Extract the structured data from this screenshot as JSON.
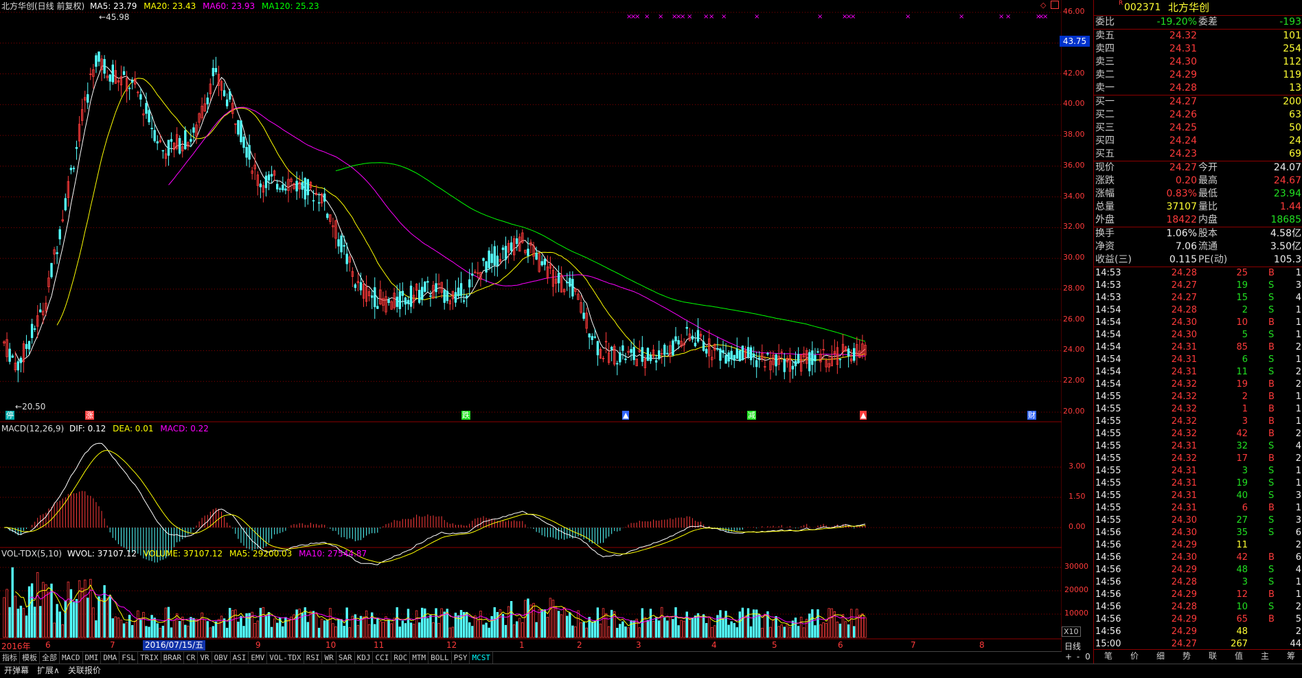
{
  "main_header": {
    "title": "北方华创(日线 前复权)",
    "ma5": "MA5: 23.79",
    "ma20": "MA20: 23.43",
    "ma60": "MA60: 23.93",
    "ma120": "MA120: 25.23"
  },
  "macd_header": {
    "name": "MACD(12,26,9)",
    "dif": "DIF: 0.12",
    "dea": "DEA: 0.01",
    "macd": "MACD: 0.22"
  },
  "vol_header": {
    "name": "VOL-TDX(5,10)",
    "wvol": "WVOL: 37107.12",
    "volume": "VOLUME: 37107.12",
    "ma5": "MA5: 29200.03",
    "ma10": "MA10: 27544.87"
  },
  "price_axis": [
    "46.00",
    "44.00",
    "42.00",
    "40.00",
    "38.00",
    "36.00",
    "34.00",
    "32.00",
    "30.00",
    "28.00",
    "26.00",
    "24.00",
    "22.00",
    "20.00"
  ],
  "current_marker": "43.75",
  "high_label": "45.98",
  "low_label": "20.50",
  "macd_axis": [
    "3.00",
    "1.50",
    "0.00"
  ],
  "vol_axis": [
    "30000",
    "20000",
    "10000"
  ],
  "vol_unit": "X10",
  "month_axis": {
    "items": [
      "2016年",
      "6",
      "7",
      "9",
      "10",
      "11",
      "12",
      "1",
      "2",
      "3",
      "4",
      "5",
      "6",
      "7",
      "8"
    ],
    "cursor_date": "2016/07/15/五",
    "period": "日线"
  },
  "event_markers": [
    "停",
    "涨",
    "跌",
    "▲",
    "减",
    "▲",
    "财"
  ],
  "toolbar_tabs": [
    "指标",
    "模板",
    "全部",
    "MACD",
    "DMI",
    "DMA",
    "FSL",
    "TRIX",
    "BRAR",
    "CR",
    "VR",
    "OBV",
    "ASI",
    "EMV",
    "VOL-TDX",
    "RSI",
    "WR",
    "SAR",
    "KDJ",
    "CCI",
    "ROC",
    "MTM",
    "BOLL",
    "PSY",
    "MCST"
  ],
  "toolbar_active": "MCST",
  "bottom_buttons": [
    "开弹幕",
    "扩展∧",
    "关联报价"
  ],
  "zoom_buttons": [
    "+",
    "-",
    "0"
  ],
  "quote": {
    "code": "002371",
    "name": "北方华创",
    "weibi_label": "委比",
    "weibi_value": "-19.20%",
    "weicha_label": "委差",
    "weicha_value": "-193",
    "sell": [
      {
        "label": "卖五",
        "price": "24.32",
        "vol": "101"
      },
      {
        "label": "卖四",
        "price": "24.31",
        "vol": "254"
      },
      {
        "label": "卖三",
        "price": "24.30",
        "vol": "112"
      },
      {
        "label": "卖二",
        "price": "24.29",
        "vol": "119"
      },
      {
        "label": "卖一",
        "price": "24.28",
        "vol": "13"
      }
    ],
    "buy": [
      {
        "label": "买一",
        "price": "24.27",
        "vol": "200"
      },
      {
        "label": "买二",
        "price": "24.26",
        "vol": "63"
      },
      {
        "label": "买三",
        "price": "24.25",
        "vol": "50"
      },
      {
        "label": "买四",
        "price": "24.24",
        "vol": "24"
      },
      {
        "label": "买五",
        "price": "24.23",
        "vol": "69"
      }
    ],
    "stats": [
      {
        "l1": "现价",
        "v1": "24.27",
        "c1": "red",
        "l2": "今开",
        "v2": "24.07",
        "c2": "wht"
      },
      {
        "l1": "涨跌",
        "v1": "0.20",
        "c1": "red",
        "l2": "最高",
        "v2": "24.67",
        "c2": "red"
      },
      {
        "l1": "涨幅",
        "v1": "0.83%",
        "c1": "red",
        "l2": "最低",
        "v2": "23.94",
        "c2": "grn"
      },
      {
        "l1": "总量",
        "v1": "37107",
        "c1": "yel",
        "l2": "量比",
        "v2": "1.44",
        "c2": "red"
      },
      {
        "l1": "外盘",
        "v1": "18422",
        "c1": "red",
        "l2": "内盘",
        "v2": "18685",
        "c2": "grn"
      }
    ],
    "stats2": [
      {
        "l1": "换手",
        "v1": "1.06%",
        "l2": "股本",
        "v2": "4.58亿"
      },
      {
        "l1": "净资",
        "v1": "7.06",
        "l2": "流通",
        "v2": "3.50亿"
      },
      {
        "l1": "收益(三)",
        "v1": "0.115",
        "l2": "PE(动)",
        "v2": "105.3"
      }
    ]
  },
  "ticks": [
    {
      "t": "14:53",
      "p": "24.28",
      "v": "25",
      "d": "B",
      "n": "1"
    },
    {
      "t": "14:53",
      "p": "24.27",
      "v": "19",
      "d": "S",
      "n": "3"
    },
    {
      "t": "14:53",
      "p": "24.27",
      "v": "15",
      "d": "S",
      "n": "4"
    },
    {
      "t": "14:54",
      "p": "24.28",
      "v": "2",
      "d": "S",
      "n": "1"
    },
    {
      "t": "14:54",
      "p": "24.30",
      "v": "10",
      "d": "B",
      "n": "1"
    },
    {
      "t": "14:54",
      "p": "24.30",
      "v": "5",
      "d": "S",
      "n": "1"
    },
    {
      "t": "14:54",
      "p": "24.31",
      "v": "85",
      "d": "B",
      "n": "2"
    },
    {
      "t": "14:54",
      "p": "24.31",
      "v": "6",
      "d": "S",
      "n": "1"
    },
    {
      "t": "14:54",
      "p": "24.31",
      "v": "11",
      "d": "S",
      "n": "2"
    },
    {
      "t": "14:54",
      "p": "24.32",
      "v": "19",
      "d": "B",
      "n": "2"
    },
    {
      "t": "14:55",
      "p": "24.32",
      "v": "2",
      "d": "B",
      "n": "1"
    },
    {
      "t": "14:55",
      "p": "24.32",
      "v": "1",
      "d": "B",
      "n": "1"
    },
    {
      "t": "14:55",
      "p": "24.32",
      "v": "3",
      "d": "B",
      "n": "1"
    },
    {
      "t": "14:55",
      "p": "24.32",
      "v": "42",
      "d": "B",
      "n": "2"
    },
    {
      "t": "14:55",
      "p": "24.31",
      "v": "32",
      "d": "S",
      "n": "4"
    },
    {
      "t": "14:55",
      "p": "24.32",
      "v": "17",
      "d": "B",
      "n": "2"
    },
    {
      "t": "14:55",
      "p": "24.31",
      "v": "3",
      "d": "S",
      "n": "1"
    },
    {
      "t": "14:55",
      "p": "24.31",
      "v": "19",
      "d": "S",
      "n": "1"
    },
    {
      "t": "14:55",
      "p": "24.31",
      "v": "40",
      "d": "S",
      "n": "3"
    },
    {
      "t": "14:55",
      "p": "24.31",
      "v": "6",
      "d": "B",
      "n": "1"
    },
    {
      "t": "14:55",
      "p": "24.30",
      "v": "27",
      "d": "S",
      "n": "3"
    },
    {
      "t": "14:56",
      "p": "24.30",
      "v": "35",
      "d": "S",
      "n": "6"
    },
    {
      "t": "14:56",
      "p": "24.29",
      "v": "11",
      "d": "",
      "n": "2"
    },
    {
      "t": "14:56",
      "p": "24.30",
      "v": "42",
      "d": "B",
      "n": "6"
    },
    {
      "t": "14:56",
      "p": "24.29",
      "v": "48",
      "d": "S",
      "n": "4"
    },
    {
      "t": "14:56",
      "p": "24.28",
      "v": "3",
      "d": "S",
      "n": "1"
    },
    {
      "t": "14:56",
      "p": "24.29",
      "v": "12",
      "d": "B",
      "n": "1"
    },
    {
      "t": "14:56",
      "p": "24.28",
      "v": "10",
      "d": "S",
      "n": "2"
    },
    {
      "t": "14:56",
      "p": "24.29",
      "v": "65",
      "d": "B",
      "n": "5"
    },
    {
      "t": "14:56",
      "p": "24.29",
      "v": "48",
      "d": "",
      "n": "2"
    },
    {
      "t": "15:00",
      "p": "24.27",
      "v": "267",
      "d": "",
      "n": "44"
    }
  ],
  "panel_tabs": [
    "笔",
    "价",
    "细",
    "势",
    "联",
    "值",
    "主",
    "筹"
  ],
  "colors": {
    "up": "#ff3b3b",
    "down": "#54ffff",
    "ma5": "#ffffff",
    "ma20": "#ffff00",
    "ma60": "#ff00ff",
    "ma120": "#00ff00",
    "grid": "#8b0000"
  }
}
